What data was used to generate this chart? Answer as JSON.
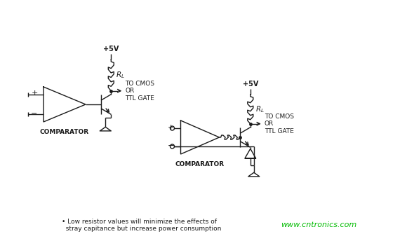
{
  "bg_color": "#ffffff",
  "line_color": "#1a1a1a",
  "text_color": "#1a1a1a",
  "watermark_color": "#00bb00",
  "watermark": "www.cntronics.com",
  "footnote_line1": "  Low resistor values will minimize the effects of",
  "footnote_line2": "  stray capitance but increase power consumption",
  "label_comparator1": "COMPARATOR",
  "label_comparator2": "COMPARATOR",
  "label_5v1": "+5V",
  "label_5v2": "+5V",
  "label_tocmos1": "TO CMOS\nOR\nTTL GATE",
  "label_tocmos2": "TO CMOS\nOR\nTTL GATE",
  "bullet": "•"
}
